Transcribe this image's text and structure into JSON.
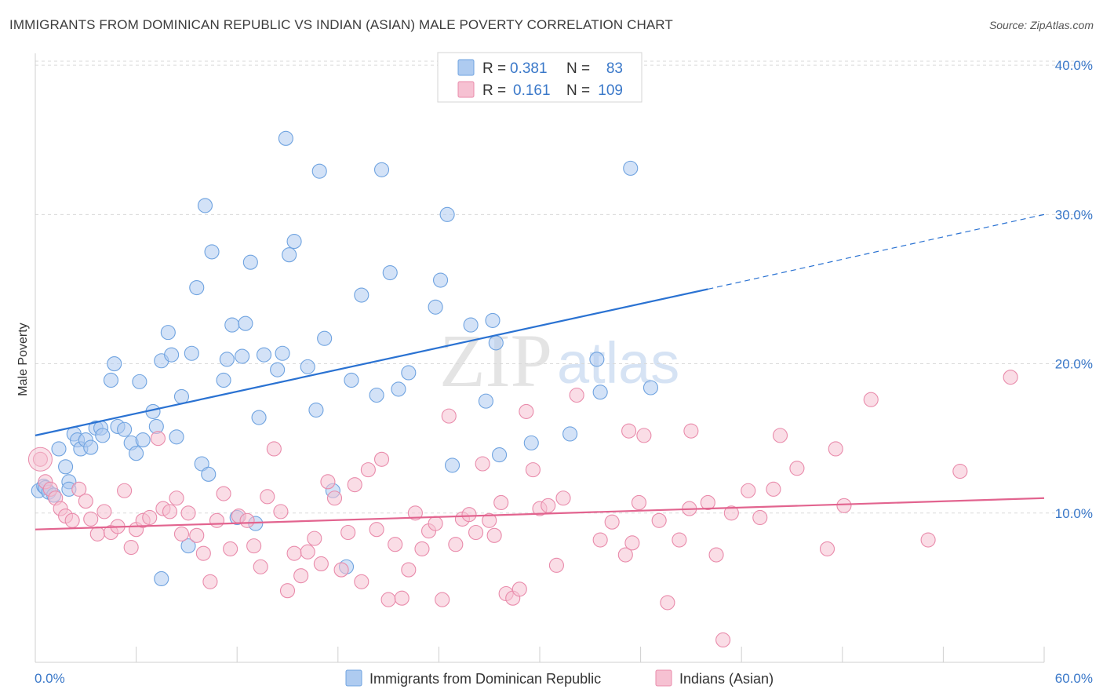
{
  "title": "IMMIGRANTS FROM DOMINICAN REPUBLIC VS INDIAN (ASIAN) MALE POVERTY CORRELATION CHART",
  "source": "Source: ZipAtlas.com",
  "watermark": {
    "zip": "ZIP",
    "atlas": "atlas"
  },
  "colors": {
    "blue": "#6fa3e0",
    "blue_fill": "#aecbf0",
    "blue_line": "#2a72d2",
    "pink": "#e98bab",
    "pink_fill": "#f6c1d2",
    "pink_line": "#e2648f",
    "axis_text": "#3a78c9",
    "grid": "#d9d9d9"
  },
  "legend": {
    "rows": [
      {
        "r_label": "R =",
        "r_value": "0.381",
        "n_label": "N =",
        "n_value": "83"
      },
      {
        "r_label": "R =",
        "r_value": "0.161",
        "n_label": "N =",
        "n_value": "109"
      }
    ]
  },
  "chart_data": {
    "type": "scatter",
    "xlabel": "",
    "ylabel": "Male Poverty",
    "xlim": [
      0,
      60
    ],
    "ylim": [
      0,
      40.9
    ],
    "x_tick_labels": [
      "0.0%",
      "60.0%"
    ],
    "y_ticks": [
      10,
      20,
      30,
      40
    ],
    "y_tick_labels": [
      "10.0%",
      "20.0%",
      "30.0%",
      "40.0%"
    ],
    "grid": true,
    "series": [
      {
        "name": "Immigrants from Dominican Republic",
        "color": "blue",
        "trend": {
          "x0": 0,
          "y0": 15.2,
          "x1": 40,
          "y1": 25.0,
          "dash_x1": 60,
          "dash_y1": 30.0
        },
        "points": [
          [
            0.2,
            11.5
          ],
          [
            0.5,
            11.8
          ],
          [
            0.6,
            11.7
          ],
          [
            0.8,
            11.4
          ],
          [
            1.1,
            11.2
          ],
          [
            1.4,
            14.3
          ],
          [
            1.8,
            13.1
          ],
          [
            2.0,
            12.1
          ],
          [
            2.3,
            15.3
          ],
          [
            2.5,
            14.9
          ],
          [
            2.7,
            14.3
          ],
          [
            3.0,
            14.9
          ],
          [
            3.3,
            14.4
          ],
          [
            3.6,
            15.7
          ],
          [
            3.9,
            15.7
          ],
          [
            4.0,
            15.2
          ],
          [
            4.5,
            18.9
          ],
          [
            4.7,
            20.0
          ],
          [
            4.9,
            15.8
          ],
          [
            5.3,
            15.6
          ],
          [
            5.7,
            14.7
          ],
          [
            6.0,
            14.0
          ],
          [
            6.2,
            18.8
          ],
          [
            6.4,
            14.9
          ],
          [
            7.0,
            16.8
          ],
          [
            7.2,
            15.8
          ],
          [
            7.5,
            20.2
          ],
          [
            7.9,
            22.1
          ],
          [
            8.1,
            20.6
          ],
          [
            8.4,
            15.1
          ],
          [
            8.7,
            17.8
          ],
          [
            9.1,
            7.8
          ],
          [
            9.3,
            20.7
          ],
          [
            9.6,
            25.1
          ],
          [
            9.9,
            13.3
          ],
          [
            10.1,
            30.6
          ],
          [
            10.3,
            12.6
          ],
          [
            10.5,
            27.5
          ],
          [
            11.2,
            18.9
          ],
          [
            11.4,
            20.3
          ],
          [
            11.7,
            22.6
          ],
          [
            12.0,
            9.7
          ],
          [
            12.3,
            20.5
          ],
          [
            12.5,
            22.7
          ],
          [
            12.8,
            26.8
          ],
          [
            13.1,
            9.3
          ],
          [
            13.3,
            16.4
          ],
          [
            13.6,
            20.6
          ],
          [
            14.4,
            19.6
          ],
          [
            14.7,
            20.7
          ],
          [
            14.9,
            35.1
          ],
          [
            15.1,
            27.3
          ],
          [
            15.4,
            28.2
          ],
          [
            16.2,
            19.8
          ],
          [
            16.7,
            16.9
          ],
          [
            16.9,
            32.9
          ],
          [
            17.2,
            21.7
          ],
          [
            17.7,
            11.5
          ],
          [
            18.5,
            6.4
          ],
          [
            18.8,
            18.9
          ],
          [
            19.4,
            24.6
          ],
          [
            20.3,
            17.9
          ],
          [
            20.6,
            33.0
          ],
          [
            21.1,
            26.1
          ],
          [
            21.6,
            18.3
          ],
          [
            22.2,
            19.4
          ],
          [
            23.8,
            23.8
          ],
          [
            24.1,
            25.6
          ],
          [
            24.5,
            30.0
          ],
          [
            24.8,
            13.2
          ],
          [
            25.9,
            22.6
          ],
          [
            26.8,
            17.5
          ],
          [
            27.2,
            22.9
          ],
          [
            27.4,
            21.4
          ],
          [
            27.6,
            13.9
          ],
          [
            29.5,
            14.7
          ],
          [
            31.8,
            15.3
          ],
          [
            33.4,
            20.3
          ],
          [
            33.6,
            18.1
          ],
          [
            35.4,
            33.1
          ],
          [
            36.6,
            18.4
          ],
          [
            2.0,
            11.6
          ],
          [
            7.5,
            5.6
          ]
        ]
      },
      {
        "name": "Indians (Asian)",
        "color": "pink",
        "trend": {
          "x0": 0,
          "y0": 8.9,
          "x1": 60,
          "y1": 11.0
        },
        "points": [
          [
            0.3,
            13.6
          ],
          [
            0.6,
            12.1
          ],
          [
            0.9,
            11.6
          ],
          [
            1.2,
            11.0
          ],
          [
            1.5,
            10.3
          ],
          [
            1.8,
            9.8
          ],
          [
            2.2,
            9.5
          ],
          [
            2.6,
            11.6
          ],
          [
            3.0,
            10.8
          ],
          [
            3.3,
            9.6
          ],
          [
            3.7,
            8.6
          ],
          [
            4.1,
            10.1
          ],
          [
            4.5,
            8.7
          ],
          [
            4.9,
            9.1
          ],
          [
            5.3,
            11.5
          ],
          [
            5.7,
            7.7
          ],
          [
            6.0,
            8.9
          ],
          [
            6.4,
            9.5
          ],
          [
            6.8,
            9.7
          ],
          [
            7.3,
            15.0
          ],
          [
            7.6,
            10.3
          ],
          [
            8.0,
            10.1
          ],
          [
            8.4,
            11.0
          ],
          [
            8.7,
            8.6
          ],
          [
            9.1,
            10.0
          ],
          [
            9.6,
            8.5
          ],
          [
            10.0,
            7.3
          ],
          [
            10.4,
            5.4
          ],
          [
            10.8,
            9.5
          ],
          [
            11.2,
            11.3
          ],
          [
            11.6,
            7.6
          ],
          [
            12.1,
            9.8
          ],
          [
            12.6,
            9.5
          ],
          [
            13.0,
            7.8
          ],
          [
            13.4,
            6.4
          ],
          [
            13.8,
            11.1
          ],
          [
            14.2,
            14.3
          ],
          [
            14.6,
            10.1
          ],
          [
            15.0,
            4.8
          ],
          [
            15.4,
            7.3
          ],
          [
            15.8,
            5.8
          ],
          [
            16.2,
            7.4
          ],
          [
            16.6,
            8.3
          ],
          [
            17.0,
            6.6
          ],
          [
            17.4,
            12.1
          ],
          [
            17.8,
            11.0
          ],
          [
            18.2,
            6.2
          ],
          [
            18.6,
            8.7
          ],
          [
            19.0,
            11.9
          ],
          [
            19.4,
            5.4
          ],
          [
            19.8,
            12.9
          ],
          [
            20.3,
            8.9
          ],
          [
            20.6,
            13.6
          ],
          [
            21.0,
            4.2
          ],
          [
            21.4,
            7.9
          ],
          [
            21.8,
            4.3
          ],
          [
            22.2,
            6.2
          ],
          [
            22.6,
            10.0
          ],
          [
            23.0,
            7.6
          ],
          [
            23.4,
            8.8
          ],
          [
            23.8,
            9.3
          ],
          [
            24.2,
            4.2
          ],
          [
            24.6,
            16.5
          ],
          [
            25.0,
            7.9
          ],
          [
            25.4,
            9.6
          ],
          [
            25.8,
            9.9
          ],
          [
            26.2,
            8.7
          ],
          [
            26.6,
            13.3
          ],
          [
            27.0,
            9.5
          ],
          [
            27.3,
            8.5
          ],
          [
            27.7,
            10.7
          ],
          [
            28.0,
            4.6
          ],
          [
            28.4,
            4.3
          ],
          [
            28.8,
            4.9
          ],
          [
            29.2,
            16.8
          ],
          [
            29.6,
            12.9
          ],
          [
            30.0,
            10.3
          ],
          [
            30.5,
            10.5
          ],
          [
            31.0,
            6.5
          ],
          [
            31.4,
            11.0
          ],
          [
            32.2,
            17.9
          ],
          [
            33.6,
            8.2
          ],
          [
            34.3,
            9.4
          ],
          [
            35.1,
            7.2
          ],
          [
            35.5,
            8.0
          ],
          [
            35.9,
            10.7
          ],
          [
            36.2,
            15.2
          ],
          [
            37.1,
            9.5
          ],
          [
            37.6,
            4.0
          ],
          [
            38.3,
            8.2
          ],
          [
            39.0,
            15.5
          ],
          [
            40.0,
            10.7
          ],
          [
            40.5,
            7.2
          ],
          [
            40.9,
            1.5
          ],
          [
            41.4,
            10.0
          ],
          [
            42.4,
            11.5
          ],
          [
            43.1,
            9.7
          ],
          [
            43.9,
            11.6
          ],
          [
            44.3,
            15.2
          ],
          [
            45.3,
            13.0
          ],
          [
            47.1,
            7.6
          ],
          [
            47.6,
            14.3
          ],
          [
            48.1,
            10.5
          ],
          [
            49.7,
            17.6
          ],
          [
            53.1,
            8.2
          ],
          [
            55.0,
            12.8
          ],
          [
            58.0,
            19.1
          ],
          [
            35.3,
            15.5
          ],
          [
            38.9,
            10.3
          ]
        ]
      }
    ]
  },
  "bottom_legend": {
    "items": [
      {
        "label": "Immigrants from Dominican Republic"
      },
      {
        "label": "Indians (Asian)"
      }
    ]
  }
}
